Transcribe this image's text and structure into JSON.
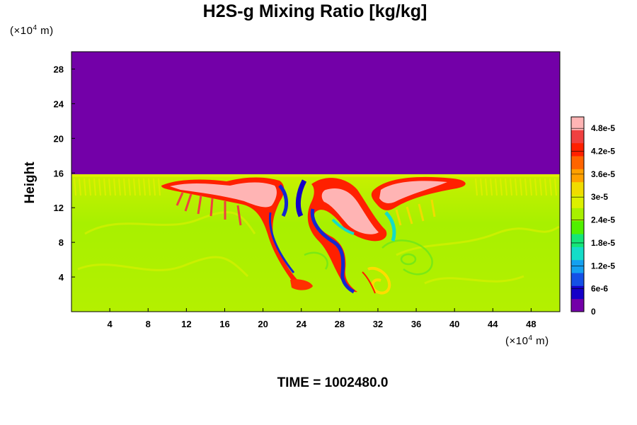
{
  "title": "H2S-g Mixing Ratio [kg/kg]",
  "y_unit": {
    "prefix": "(×10",
    "exp": "4",
    "suffix": " m)"
  },
  "x_unit": {
    "prefix": "(×10",
    "exp": "4",
    "suffix": " m)"
  },
  "time_label": "TIME = 1002480.0",
  "colors": {
    "background_top": "#7300a8",
    "ambient": "#a8f000",
    "plume_core": "#ffb4b4",
    "plume_edge": "#ff2000",
    "low": "#1428d0"
  },
  "chart_data": {
    "type": "heatmap",
    "title": "H2S-g Mixing Ratio [kg/kg]",
    "xlabel": "",
    "ylabel": "Height",
    "xlim": [
      0,
      51
    ],
    "ylim": [
      0,
      30
    ],
    "x_ticks": [
      "4",
      "8",
      "12",
      "16",
      "20",
      "24",
      "28",
      "32",
      "36",
      "40",
      "44",
      "48"
    ],
    "y_ticks": [
      "4",
      "8",
      "12",
      "16",
      "20",
      "24",
      "28"
    ],
    "field_description": "H2S-g mixing ratio: near 0 above ~16 (x10^4 m); ~3e-5 background below; plumes up to >4.8e-5 between x≈10 and x≈41",
    "interface_height": 15.8,
    "colorbar": {
      "min": 0,
      "max": 5.1e-05,
      "tick_labels": [
        "0",
        "6e-6",
        "1.2e-5",
        "1.8e-5",
        "2.4e-5",
        "3e-5",
        "3.6e-5",
        "4.2e-5",
        "4.8e-5"
      ],
      "tick_values": [
        0,
        6e-06,
        1.2e-05,
        1.8e-05,
        2.4e-05,
        3e-05,
        3.6e-05,
        4.2e-05,
        4.8e-05
      ],
      "colors": [
        "#7300a8",
        "#1400c8",
        "#1450e6",
        "#14a0f0",
        "#14dcc8",
        "#14e678",
        "#50f000",
        "#a8f000",
        "#dcf000",
        "#f0dc00",
        "#ffa000",
        "#ff6400",
        "#ff2000",
        "#f04040",
        "#ffb4b4"
      ]
    }
  }
}
